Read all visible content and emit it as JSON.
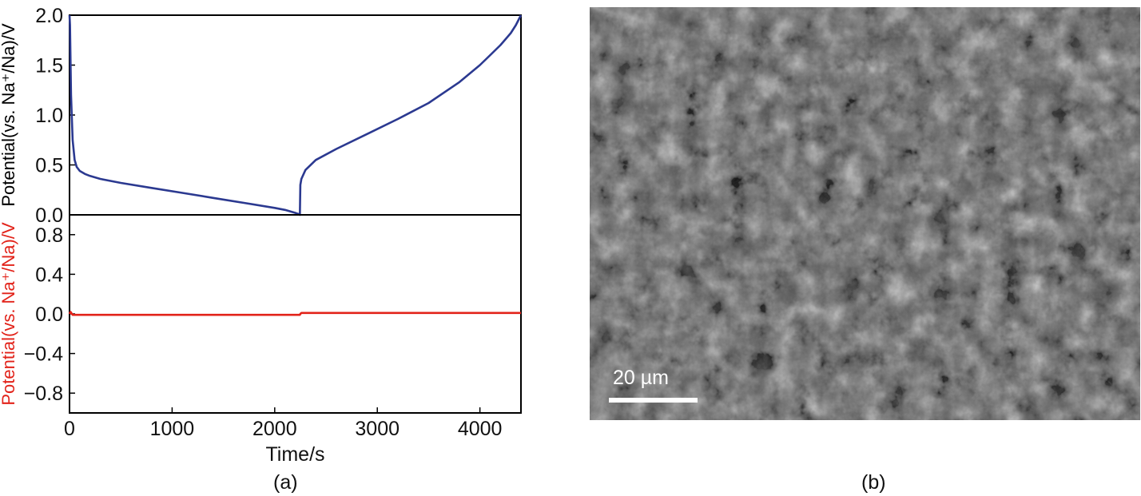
{
  "chart_data": [
    {
      "type": "line",
      "panel": "top",
      "xlim": [
        0,
        4400
      ],
      "ylim": [
        0,
        2.0
      ],
      "yticks": [
        0.0,
        0.5,
        1.0,
        1.5,
        2.0
      ],
      "ytick_labels": [
        "0.0",
        "0.5",
        "1.0",
        "1.5",
        "2.0"
      ],
      "ylabel": "Potential(vs. Na⁺/Na)/V",
      "ylabel_color": "#000000",
      "series": [
        {
          "color": "#2b3990",
          "x": [
            0,
            5,
            15,
            30,
            50,
            70,
            100,
            150,
            200,
            300,
            500,
            800,
            1100,
            1400,
            1700,
            2000,
            2100,
            2200,
            2240,
            2245,
            2250,
            2260,
            2300,
            2400,
            2600,
            2900,
            3200,
            3500,
            3800,
            4000,
            4100,
            4200,
            4300,
            4350,
            4400
          ],
          "y": [
            2.0,
            1.9,
            1.2,
            0.75,
            0.55,
            0.48,
            0.44,
            0.41,
            0.39,
            0.36,
            0.32,
            0.27,
            0.22,
            0.17,
            0.12,
            0.07,
            0.05,
            0.02,
            0.005,
            0.0,
            0.3,
            0.36,
            0.45,
            0.55,
            0.66,
            0.81,
            0.96,
            1.12,
            1.33,
            1.5,
            1.6,
            1.7,
            1.82,
            1.9,
            2.0
          ]
        }
      ]
    },
    {
      "type": "line",
      "panel": "bottom",
      "xlim": [
        0,
        4400
      ],
      "ylim": [
        -1.0,
        1.0
      ],
      "yticks": [
        -0.8,
        -0.4,
        0.0,
        0.4,
        0.8
      ],
      "ytick_labels": [
        "−0.8",
        "−0.4",
        "0.0",
        "0.4",
        "0.8"
      ],
      "ylabel": "Potential(vs. Na⁺/Na)/V",
      "ylabel_color": "#e2231a",
      "xlabel": "Time/s",
      "xticks": [
        0,
        1000,
        2000,
        3000,
        4000
      ],
      "xtick_labels": [
        "0",
        "1000",
        "2000",
        "3000",
        "4000"
      ],
      "series": [
        {
          "color": "#e2231a",
          "x": [
            0,
            10,
            30,
            60,
            2245,
            2250,
            2260,
            4400
          ],
          "y": [
            0.0,
            0.02,
            -0.01,
            -0.01,
            -0.01,
            0.0,
            0.01,
            0.01
          ]
        }
      ]
    }
  ],
  "labels": {
    "panel_a": "(a)",
    "panel_b": "(b)",
    "scale_bar": "20 µm"
  },
  "image": {
    "description_name": "sem-micrograph",
    "base_color": "#585858"
  }
}
